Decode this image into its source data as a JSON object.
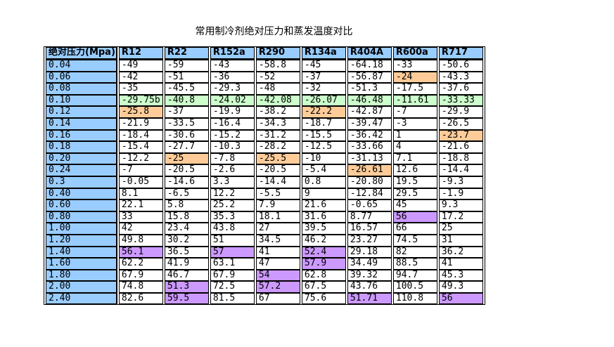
{
  "colors": {
    "header_bg": "#99CCFF",
    "row_label_bg": "#99CCFF",
    "green": "#CCFFCC",
    "orange": "#FFCC99",
    "purple": "#CC99FF",
    "cell_bg": "#FFFFFF",
    "border": "#000000",
    "text": "#000000"
  },
  "chart_data": {
    "type": "table",
    "title": "常用制冷剂绝对压力和蒸发温度对比",
    "pressure_header": "绝对压力(Mpa)",
    "refrigerant_headers": [
      "R12",
      "R22",
      "R152a",
      "R290",
      "R134a",
      "R404A",
      "R600a",
      "R717"
    ],
    "rows": [
      {
        "pressure": "0.04",
        "values": [
          "-49",
          "-59",
          "-43",
          "-58.8",
          "-45",
          "-64.18",
          "-33",
          "-50.6"
        ],
        "highlights": {}
      },
      {
        "pressure": "0.06",
        "values": [
          "-42",
          "-51",
          "-36",
          "-52",
          "-37",
          "-56.87",
          "-24",
          "-43.3"
        ],
        "highlights": {
          "6": "orange"
        }
      },
      {
        "pressure": "0.08",
        "values": [
          "-35",
          "-45.5",
          "-29.3",
          "-48",
          "-32",
          "-51.3",
          "-17.5",
          "-37.6"
        ],
        "highlights": {}
      },
      {
        "pressure": "0.10",
        "values": [
          "-29.75b",
          "-40.8",
          "-24.02",
          "-42.08",
          "-26.07",
          "-46.48",
          "-11.61",
          "-33.33"
        ],
        "highlights": {
          "0": "green",
          "1": "green",
          "2": "green",
          "3": "green",
          "4": "green",
          "5": "green",
          "6": "green",
          "7": "green"
        }
      },
      {
        "pressure": "0.12",
        "values": [
          "-25.8",
          "-37",
          "-19.9",
          "-38.2",
          "-22.2",
          "-42.87",
          "-7",
          "-29.9"
        ],
        "highlights": {
          "0": "orange",
          "4": "orange"
        }
      },
      {
        "pressure": "0.14",
        "values": [
          "-21.9",
          "-33.5",
          "-16.4",
          "-34.3",
          "-18.7",
          "-39.47",
          "-3",
          "-26.5"
        ],
        "highlights": {}
      },
      {
        "pressure": "0.16",
        "values": [
          "-18.4",
          "-30.6",
          "-15.2",
          "-31.2",
          "-15.5",
          "-36.42",
          "1",
          "-23.7"
        ],
        "highlights": {
          "7": "orange"
        }
      },
      {
        "pressure": "0.18",
        "values": [
          "-15.4",
          "-27.7",
          "-10.3",
          "-28.2",
          "-12.5",
          "-33.66",
          "4",
          "-21.6"
        ],
        "highlights": {}
      },
      {
        "pressure": "0.20",
        "values": [
          "-12.2",
          "-25",
          "-7.8",
          "-25.5",
          "-10",
          "-31.13",
          "7.1",
          "-18.8"
        ],
        "highlights": {
          "1": "orange",
          "3": "orange"
        }
      },
      {
        "pressure": "0.24",
        "values": [
          "-7",
          "-20.5",
          "-2.6",
          "-20.5",
          "-5.4",
          "-26.61",
          "12.6",
          "-14.4"
        ],
        "highlights": {
          "5": "orange"
        }
      },
      {
        "pressure": "0.3",
        "values": [
          "-0.05",
          "-14.6",
          "3.3",
          "-14.4",
          "0.8",
          "-20.80",
          "19.5",
          "-9.3"
        ],
        "highlights": {}
      },
      {
        "pressure": "0.40",
        "values": [
          "8.1",
          "-6.5",
          "12.2",
          "-5.5",
          "9",
          "-12.84",
          "29.5",
          "-1.9"
        ],
        "highlights": {}
      },
      {
        "pressure": "0.60",
        "values": [
          "22.1",
          "5.8",
          "25.2",
          "7.9",
          "21.6",
          "-0.65",
          "45",
          "9.3"
        ],
        "highlights": {}
      },
      {
        "pressure": "0.80",
        "values": [
          "33",
          "15.8",
          "35.3",
          "18.1",
          "31.6",
          "8.77",
          "56",
          "17.2"
        ],
        "highlights": {
          "6": "purple"
        }
      },
      {
        "pressure": "1.00",
        "values": [
          "42",
          "23.4",
          "43.8",
          "27",
          "39.5",
          "16.57",
          "66",
          "25"
        ],
        "highlights": {}
      },
      {
        "pressure": "1.20",
        "values": [
          "49.8",
          "30.2",
          "51",
          "34.5",
          "46.2",
          "23.27",
          "74.5",
          "31"
        ],
        "highlights": {}
      },
      {
        "pressure": "1.40",
        "values": [
          "56.1",
          "36.5",
          "57",
          "41",
          "52.4",
          "29.18",
          "82",
          "36.2"
        ],
        "highlights": {
          "0": "purple",
          "2": "purple",
          "4": "purple"
        }
      },
      {
        "pressure": "1.60",
        "values": [
          "62.2",
          "41.9",
          "63.1",
          "47",
          "57.9",
          "34.49",
          "88.5",
          "41"
        ],
        "highlights": {
          "4": "purple"
        }
      },
      {
        "pressure": "1.80",
        "values": [
          "67.9",
          "46.7",
          "67.9",
          "54",
          "62.8",
          "39.32",
          "94.7",
          "45.3"
        ],
        "highlights": {
          "3": "purple"
        }
      },
      {
        "pressure": "2.00",
        "values": [
          "74.8",
          "51.3",
          "72.5",
          "57.2",
          "67.5",
          "43.76",
          "100.5",
          "49.3"
        ],
        "highlights": {
          "1": "purple",
          "3": "purple"
        }
      },
      {
        "pressure": "2.40",
        "values": [
          "82.6",
          "59.5",
          "81.5",
          "67",
          "75.6",
          "51.71",
          "110.8",
          "56"
        ],
        "highlights": {
          "1": "purple",
          "5": "purple",
          "7": "purple"
        }
      }
    ]
  }
}
